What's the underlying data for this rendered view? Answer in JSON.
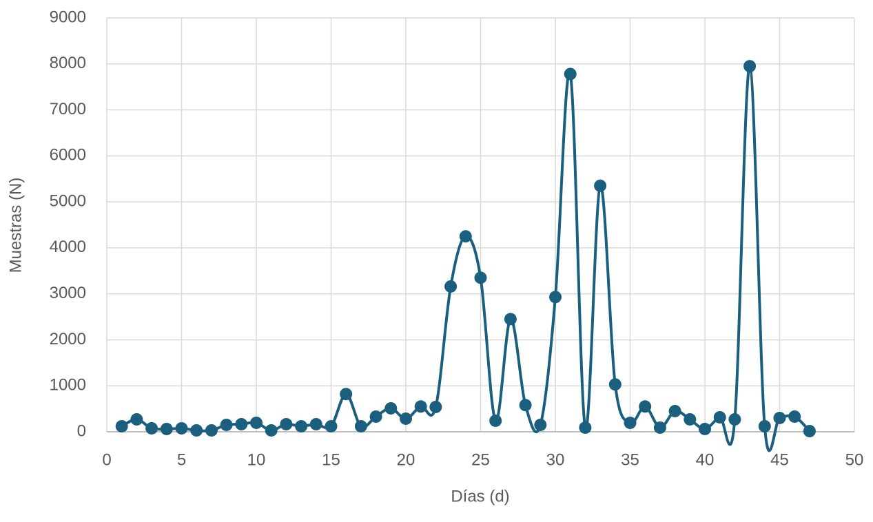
{
  "chart_data": {
    "type": "scatter-smooth",
    "x_label": "Días (d)",
    "y_label": "Muestras (N)",
    "x": [
      1,
      2,
      3,
      4,
      5,
      6,
      7,
      8,
      9,
      10,
      11,
      12,
      13,
      14,
      15,
      16,
      17,
      18,
      19,
      20,
      21,
      22,
      23,
      24,
      25,
      26,
      27,
      28,
      29,
      30,
      31,
      32,
      33,
      34,
      35,
      36,
      37,
      38,
      39,
      40,
      41,
      42,
      43,
      44,
      45,
      46,
      47
    ],
    "values": [
      120,
      270,
      75,
      60,
      75,
      30,
      30,
      150,
      165,
      195,
      30,
      165,
      120,
      165,
      120,
      820,
      120,
      330,
      510,
      285,
      550,
      540,
      3160,
      4250,
      3350,
      240,
      2450,
      580,
      150,
      2930,
      7780,
      90,
      5350,
      1030,
      195,
      550,
      90,
      450,
      270,
      60,
      315,
      270,
      7950,
      120,
      300,
      330,
      15
    ],
    "color": "#1b5f7f",
    "xlim": [
      0,
      50
    ],
    "xticks": [
      0,
      5,
      10,
      15,
      20,
      25,
      30,
      35,
      40,
      45,
      50
    ],
    "ylim": [
      0,
      9000
    ],
    "yticks": [
      0,
      1000,
      2000,
      3000,
      4000,
      5000,
      6000,
      7000,
      8000,
      9000
    ],
    "grid": true
  }
}
